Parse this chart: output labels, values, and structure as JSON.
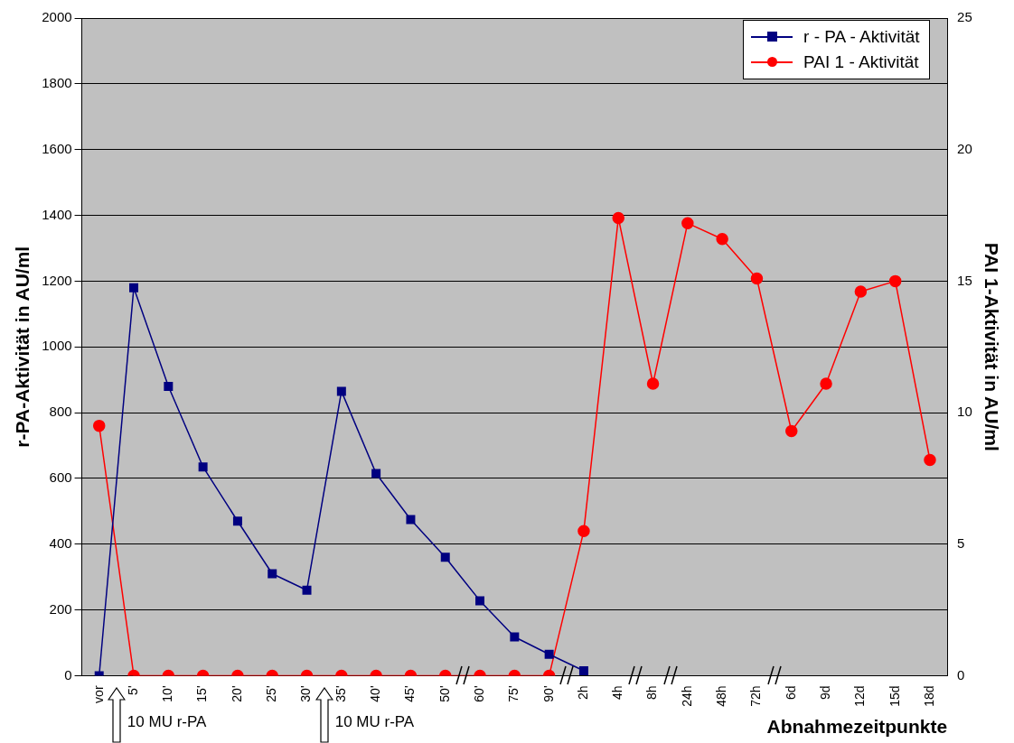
{
  "chart_data": {
    "type": "line",
    "xlabel": "Abnahmezeitpunkte",
    "ylabel": "r-PA-Aktivität in AU/ml",
    "y2label": "PAI 1-Aktivität in AU/ml",
    "categories": [
      "vor",
      "5'",
      "10'",
      "15'",
      "20'",
      "25'",
      "30'",
      "35'",
      "40'",
      "45'",
      "50'",
      "60'",
      "75'",
      "90'",
      "2h",
      "4h",
      "8h",
      "24h",
      "48h",
      "72h",
      "6d",
      "9d",
      "12d",
      "15d",
      "18d"
    ],
    "series": [
      {
        "name": "r - PA - Aktivität",
        "color": "#000080",
        "marker": "square",
        "values": [
          0,
          1180,
          880,
          635,
          470,
          310,
          260,
          865,
          615,
          475,
          360,
          228,
          118,
          65,
          15,
          null,
          null,
          null,
          null,
          null,
          null,
          null,
          null,
          null,
          null
        ]
      },
      {
        "name": "PAI 1 - Aktivität",
        "color": "#ff0000",
        "marker": "circle",
        "axis": "y2",
        "values": [
          9.5,
          0,
          0,
          0,
          0,
          0,
          0,
          0,
          0,
          0,
          0,
          0,
          0,
          0,
          5.5,
          17.4,
          11.1,
          17.2,
          16.6,
          15.1,
          9.3,
          11.1,
          14.6,
          15,
          8.2
        ]
      }
    ],
    "ylim": [
      0,
      2000
    ],
    "yticks": [
      0,
      200,
      400,
      600,
      800,
      1000,
      1200,
      1400,
      1600,
      1800,
      2000
    ],
    "y2lim": [
      0,
      25
    ],
    "y2ticks": [
      0,
      5,
      10,
      15,
      20,
      25
    ],
    "grid": "y",
    "legend": "top right",
    "annotations": [
      "10 MU r-PA",
      "10 MU r-PA"
    ]
  }
}
